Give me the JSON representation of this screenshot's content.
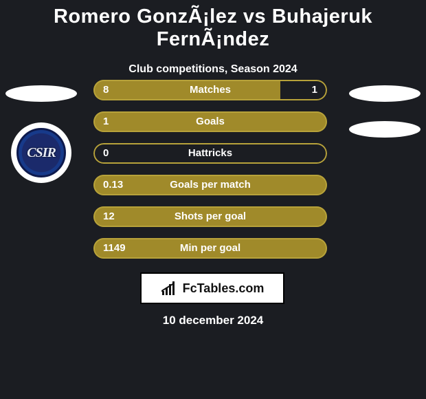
{
  "colors": {
    "bg": "#1b1d22",
    "bar_olive": "#a08a2a",
    "bar_dark": "#1b1d22",
    "outline": "#b7a23a",
    "text": "#ffffff",
    "attrib_bg": "#ffffff",
    "attrib_text": "#111111"
  },
  "header": {
    "title": "Romero GonzÃ¡lez vs Buhajeruk FernÃ¡ndez",
    "subtitle": "Club competitions, Season 2024"
  },
  "club_badge": {
    "monogram": "CSIR"
  },
  "stats": [
    {
      "label": "Matches",
      "left_value": "8",
      "right_value": "1",
      "left_pct": 80,
      "right_pct": 20
    },
    {
      "label": "Goals",
      "left_value": "1",
      "right_value": "",
      "left_pct": 100,
      "right_pct": 0
    },
    {
      "label": "Hattricks",
      "left_value": "0",
      "right_value": "",
      "left_pct": 0,
      "right_pct": 0
    },
    {
      "label": "Goals per match",
      "left_value": "0.13",
      "right_value": "",
      "left_pct": 100,
      "right_pct": 0
    },
    {
      "label": "Shots per goal",
      "left_value": "12",
      "right_value": "",
      "left_pct": 100,
      "right_pct": 0
    },
    {
      "label": "Min per goal",
      "left_value": "1149",
      "right_value": "",
      "left_pct": 100,
      "right_pct": 0
    }
  ],
  "attribution": {
    "text": "FcTables.com"
  },
  "date_line": "10 december 2024"
}
